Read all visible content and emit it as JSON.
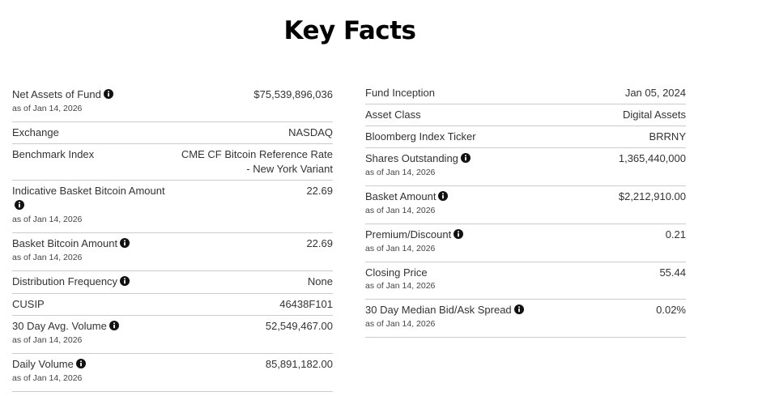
{
  "title": "Key Facts",
  "left": {
    "rows": [
      {
        "label": "Net Assets of Fund",
        "info": true,
        "value": "$75,539,896,036",
        "as_of": "as of Jan 14, 2026"
      },
      {
        "label": "Exchange",
        "info": false,
        "value": "NASDAQ"
      },
      {
        "label": "Benchmark Index",
        "info": false,
        "value": "CME CF Bitcoin Reference Rate - New York Variant"
      },
      {
        "label": "Indicative Basket Bitcoin Amount",
        "info": true,
        "value": "22.69",
        "as_of": "as of Jan 14, 2026"
      },
      {
        "label": "Basket Bitcoin Amount",
        "info": true,
        "value": "22.69",
        "as_of": "as of Jan 14, 2026"
      },
      {
        "label": "Distribution Frequency",
        "info": true,
        "value": "None"
      },
      {
        "label": "CUSIP",
        "info": false,
        "value": "46438F101"
      },
      {
        "label": "30 Day Avg. Volume",
        "info": true,
        "value": "52,549,467.00",
        "as_of": "as of Jan 14, 2026"
      },
      {
        "label": "Daily Volume",
        "info": true,
        "value": "85,891,182.00",
        "as_of": "as of Jan 14, 2026"
      }
    ]
  },
  "right": {
    "rows": [
      {
        "label": "Fund Inception",
        "info": false,
        "value": "Jan 05, 2024"
      },
      {
        "label": "Asset Class",
        "info": false,
        "value": "Digital Assets"
      },
      {
        "label": "Bloomberg Index Ticker",
        "info": false,
        "value": "BRRNY"
      },
      {
        "label": "Shares Outstanding",
        "info": true,
        "value": "1,365,440,000",
        "as_of": "as of Jan 14, 2026"
      },
      {
        "label": "Basket Amount",
        "info": true,
        "value": "$2,212,910.00",
        "as_of": "as of Jan 14, 2026"
      },
      {
        "label": "Premium/Discount",
        "info": true,
        "value": "0.21",
        "as_of": "as of Jan 14, 2026"
      },
      {
        "label": "Closing Price",
        "info": false,
        "value": "55.44",
        "as_of": "as of Jan 14, 2026"
      },
      {
        "label": "30 Day Median Bid/Ask Spread",
        "info": true,
        "value": "0.02%",
        "as_of": "as of Jan 14, 2026"
      }
    ]
  }
}
